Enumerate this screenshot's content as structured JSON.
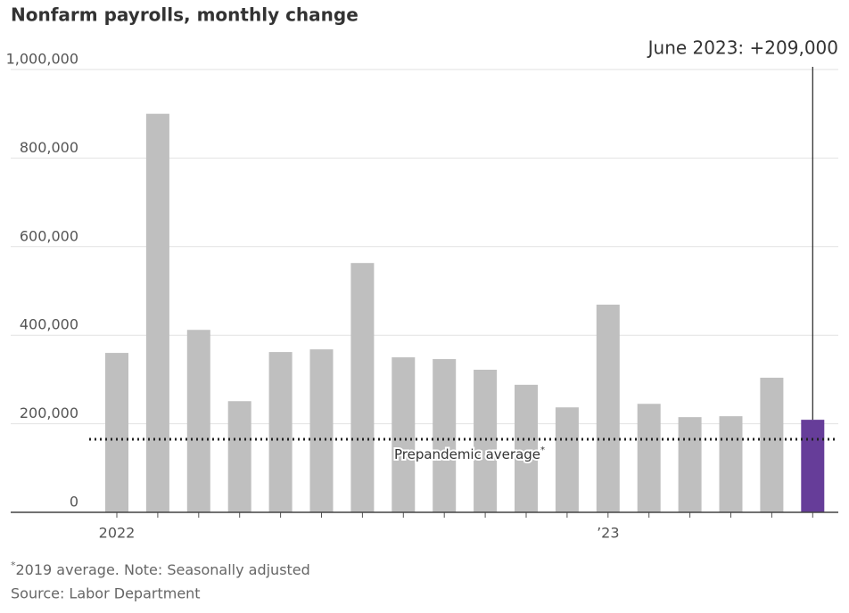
{
  "chart_data": {
    "type": "bar",
    "title": "Nonfarm payrolls, monthly change",
    "categories": [
      "2022",
      null,
      null,
      null,
      null,
      null,
      null,
      null,
      null,
      null,
      null,
      null,
      "’23",
      null,
      null,
      null,
      null,
      null
    ],
    "values": [
      360000,
      900000,
      412000,
      251000,
      362000,
      368000,
      563000,
      350000,
      346000,
      322000,
      288000,
      237000,
      469000,
      245000,
      215000,
      217000,
      304000,
      209000
    ],
    "colors": [
      "#bfbfbf",
      "#bfbfbf",
      "#bfbfbf",
      "#bfbfbf",
      "#bfbfbf",
      "#bfbfbf",
      "#bfbfbf",
      "#bfbfbf",
      "#bfbfbf",
      "#bfbfbf",
      "#bfbfbf",
      "#bfbfbf",
      "#bfbfbf",
      "#bfbfbf",
      "#bfbfbf",
      "#bfbfbf",
      "#bfbfbf",
      "#663d99"
    ],
    "ylim": [
      0,
      1000000
    ],
    "yticks": [
      0,
      {
        "value": 200000,
        "label": "200,000"
      },
      {
        "value": 400000,
        "label": "400,000"
      },
      {
        "value": 600000,
        "label": "600,000"
      },
      {
        "value": 800000,
        "label": "800,000"
      },
      {
        "value": 1000000,
        "label": "1,000,000"
      }
    ],
    "grid": true,
    "annotation": "June 2023: +209,000",
    "reference_line": {
      "value": 165000,
      "label": "Prepandemic average",
      "marker": "*"
    },
    "footnote": {
      "marker": "*",
      "text": "2019 average. Note: Seasonally adjusted"
    },
    "source": "Source: Labor Department"
  }
}
